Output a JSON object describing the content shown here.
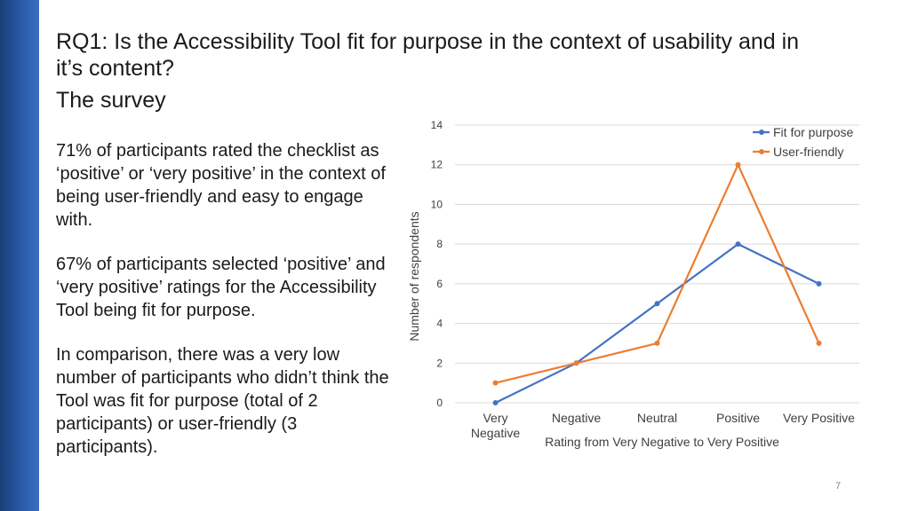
{
  "slide": {
    "title": "RQ1: Is the Accessibility Tool fit for purpose in the context of usability and in it’s content?",
    "subtitle": "The survey",
    "paragraphs": [
      "71% of participants rated the checklist as ‘positive’ or ‘very positive’ in the context of being user-friendly and easy to engage with.",
      "67% of participants selected ‘positive’ and ‘very positive’ ratings for the Accessibility Tool being fit for purpose.",
      "In comparison, there was a very low number of participants who didn’t think the Tool was fit for purpose (total of 2 participants) or user-friendly (3 participants)."
    ],
    "page_number": "7"
  },
  "colors": {
    "sidebar": "#2a5aa8",
    "series_fit": "#4472c4",
    "series_user": "#ed7d31",
    "grid": "#d9d9d9"
  },
  "chart_data": {
    "type": "line",
    "title": "",
    "categories": [
      [
        "Very",
        "Negative"
      ],
      [
        "Negative"
      ],
      [
        "Neutral"
      ],
      [
        "Positive"
      ],
      [
        "Very Positive"
      ]
    ],
    "series": [
      {
        "name": "Fit for purpose",
        "values": [
          0,
          2,
          5,
          8,
          6
        ]
      },
      {
        "name": "User-friendly",
        "values": [
          1,
          2,
          3,
          12,
          3
        ]
      }
    ],
    "xlabel": "Rating from Very Negative to Very Positive",
    "ylabel": "Number of respondents",
    "ylim": [
      0,
      14
    ],
    "yticks": [
      "0",
      "2",
      "4",
      "6",
      "8",
      "10",
      "12",
      "14"
    ],
    "grid": true,
    "legend_position": "top-right"
  }
}
